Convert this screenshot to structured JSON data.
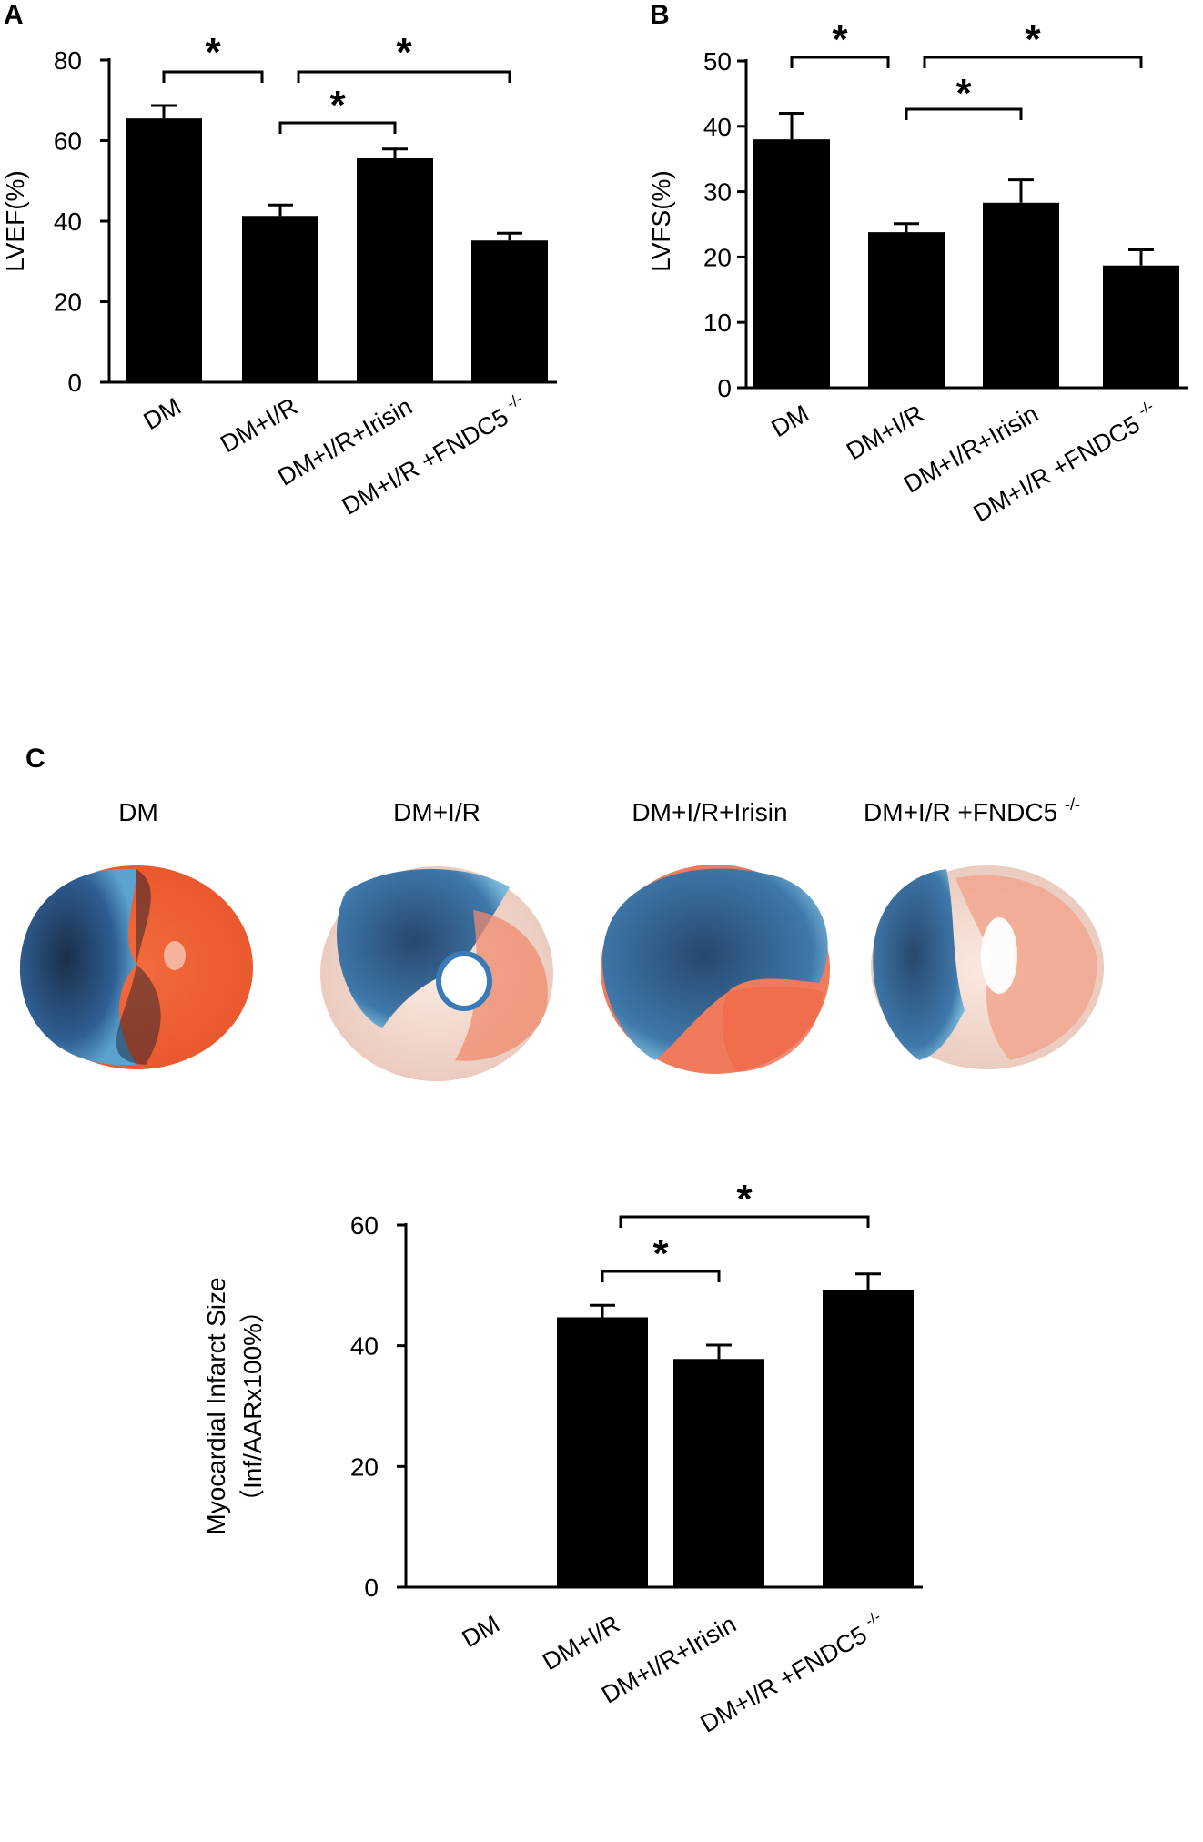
{
  "panels": {
    "a": "A",
    "b": "B",
    "c": "C"
  },
  "groups": [
    "DM",
    "DM+I/R",
    "DM+I/R+Irisin",
    "DM+I/R +FNDC5 -/-"
  ],
  "superscript": "-/-",
  "significance_mark": "*",
  "colors": {
    "bar": "#000000",
    "tissue_viable": "#f07a5a",
    "tissue_blue": "#2c5f9a",
    "tissue_pale": "#f3d7cc"
  },
  "chart_data": [
    {
      "panel": "A",
      "type": "bar",
      "categories": [
        "DM",
        "DM+I/R",
        "DM+I/R+Irisin",
        "DM+I/R +FNDC5"
      ],
      "values": [
        65.5,
        41.3,
        55.6,
        35.2
      ],
      "errors": [
        3.2,
        2.7,
        2.3,
        1.8
      ],
      "ylabel": "LVEF(%)",
      "ylim": [
        0,
        80
      ],
      "yticks": [
        "0",
        "20",
        "40",
        "60",
        "80"
      ],
      "significance": [
        {
          "from": 0,
          "to": 1,
          "label": "*"
        },
        {
          "from": 1,
          "to": 2,
          "label": "*"
        },
        {
          "from": 1,
          "to": 3,
          "label": "*"
        }
      ]
    },
    {
      "panel": "B",
      "type": "bar",
      "categories": [
        "DM",
        "DM+I/R",
        "DM+I/R+Irisin",
        "DM+I/R +FNDC5"
      ],
      "values": [
        38.0,
        23.8,
        28.3,
        18.7
      ],
      "errors": [
        4.0,
        1.3,
        3.5,
        2.4
      ],
      "ylabel": "LVFS(%)",
      "ylim": [
        0,
        50
      ],
      "yticks": [
        "0",
        "10",
        "20",
        "30",
        "40",
        "50"
      ],
      "significance": [
        {
          "from": 0,
          "to": 1,
          "label": "*"
        },
        {
          "from": 1,
          "to": 2,
          "label": "*"
        },
        {
          "from": 1,
          "to": 3,
          "label": "*"
        }
      ]
    },
    {
      "panel": "C",
      "type": "bar",
      "categories": [
        "DM",
        "DM+I/R",
        "DM+I/R+Irisin",
        "DM+I/R +FNDC5"
      ],
      "values": [
        0,
        44.7,
        37.8,
        49.3
      ],
      "errors": [
        0,
        2.0,
        2.3,
        2.6
      ],
      "ylabel": "Myocardial Infarct Size",
      "ylabel2": "（Inf/AARx100%）",
      "ylim": [
        0,
        60
      ],
      "yticks": [
        "0",
        "20",
        "40",
        "60"
      ],
      "significance": [
        {
          "from": 1,
          "to": 2,
          "label": "*"
        },
        {
          "from": 1,
          "to": 3,
          "label": "*"
        }
      ]
    }
  ]
}
